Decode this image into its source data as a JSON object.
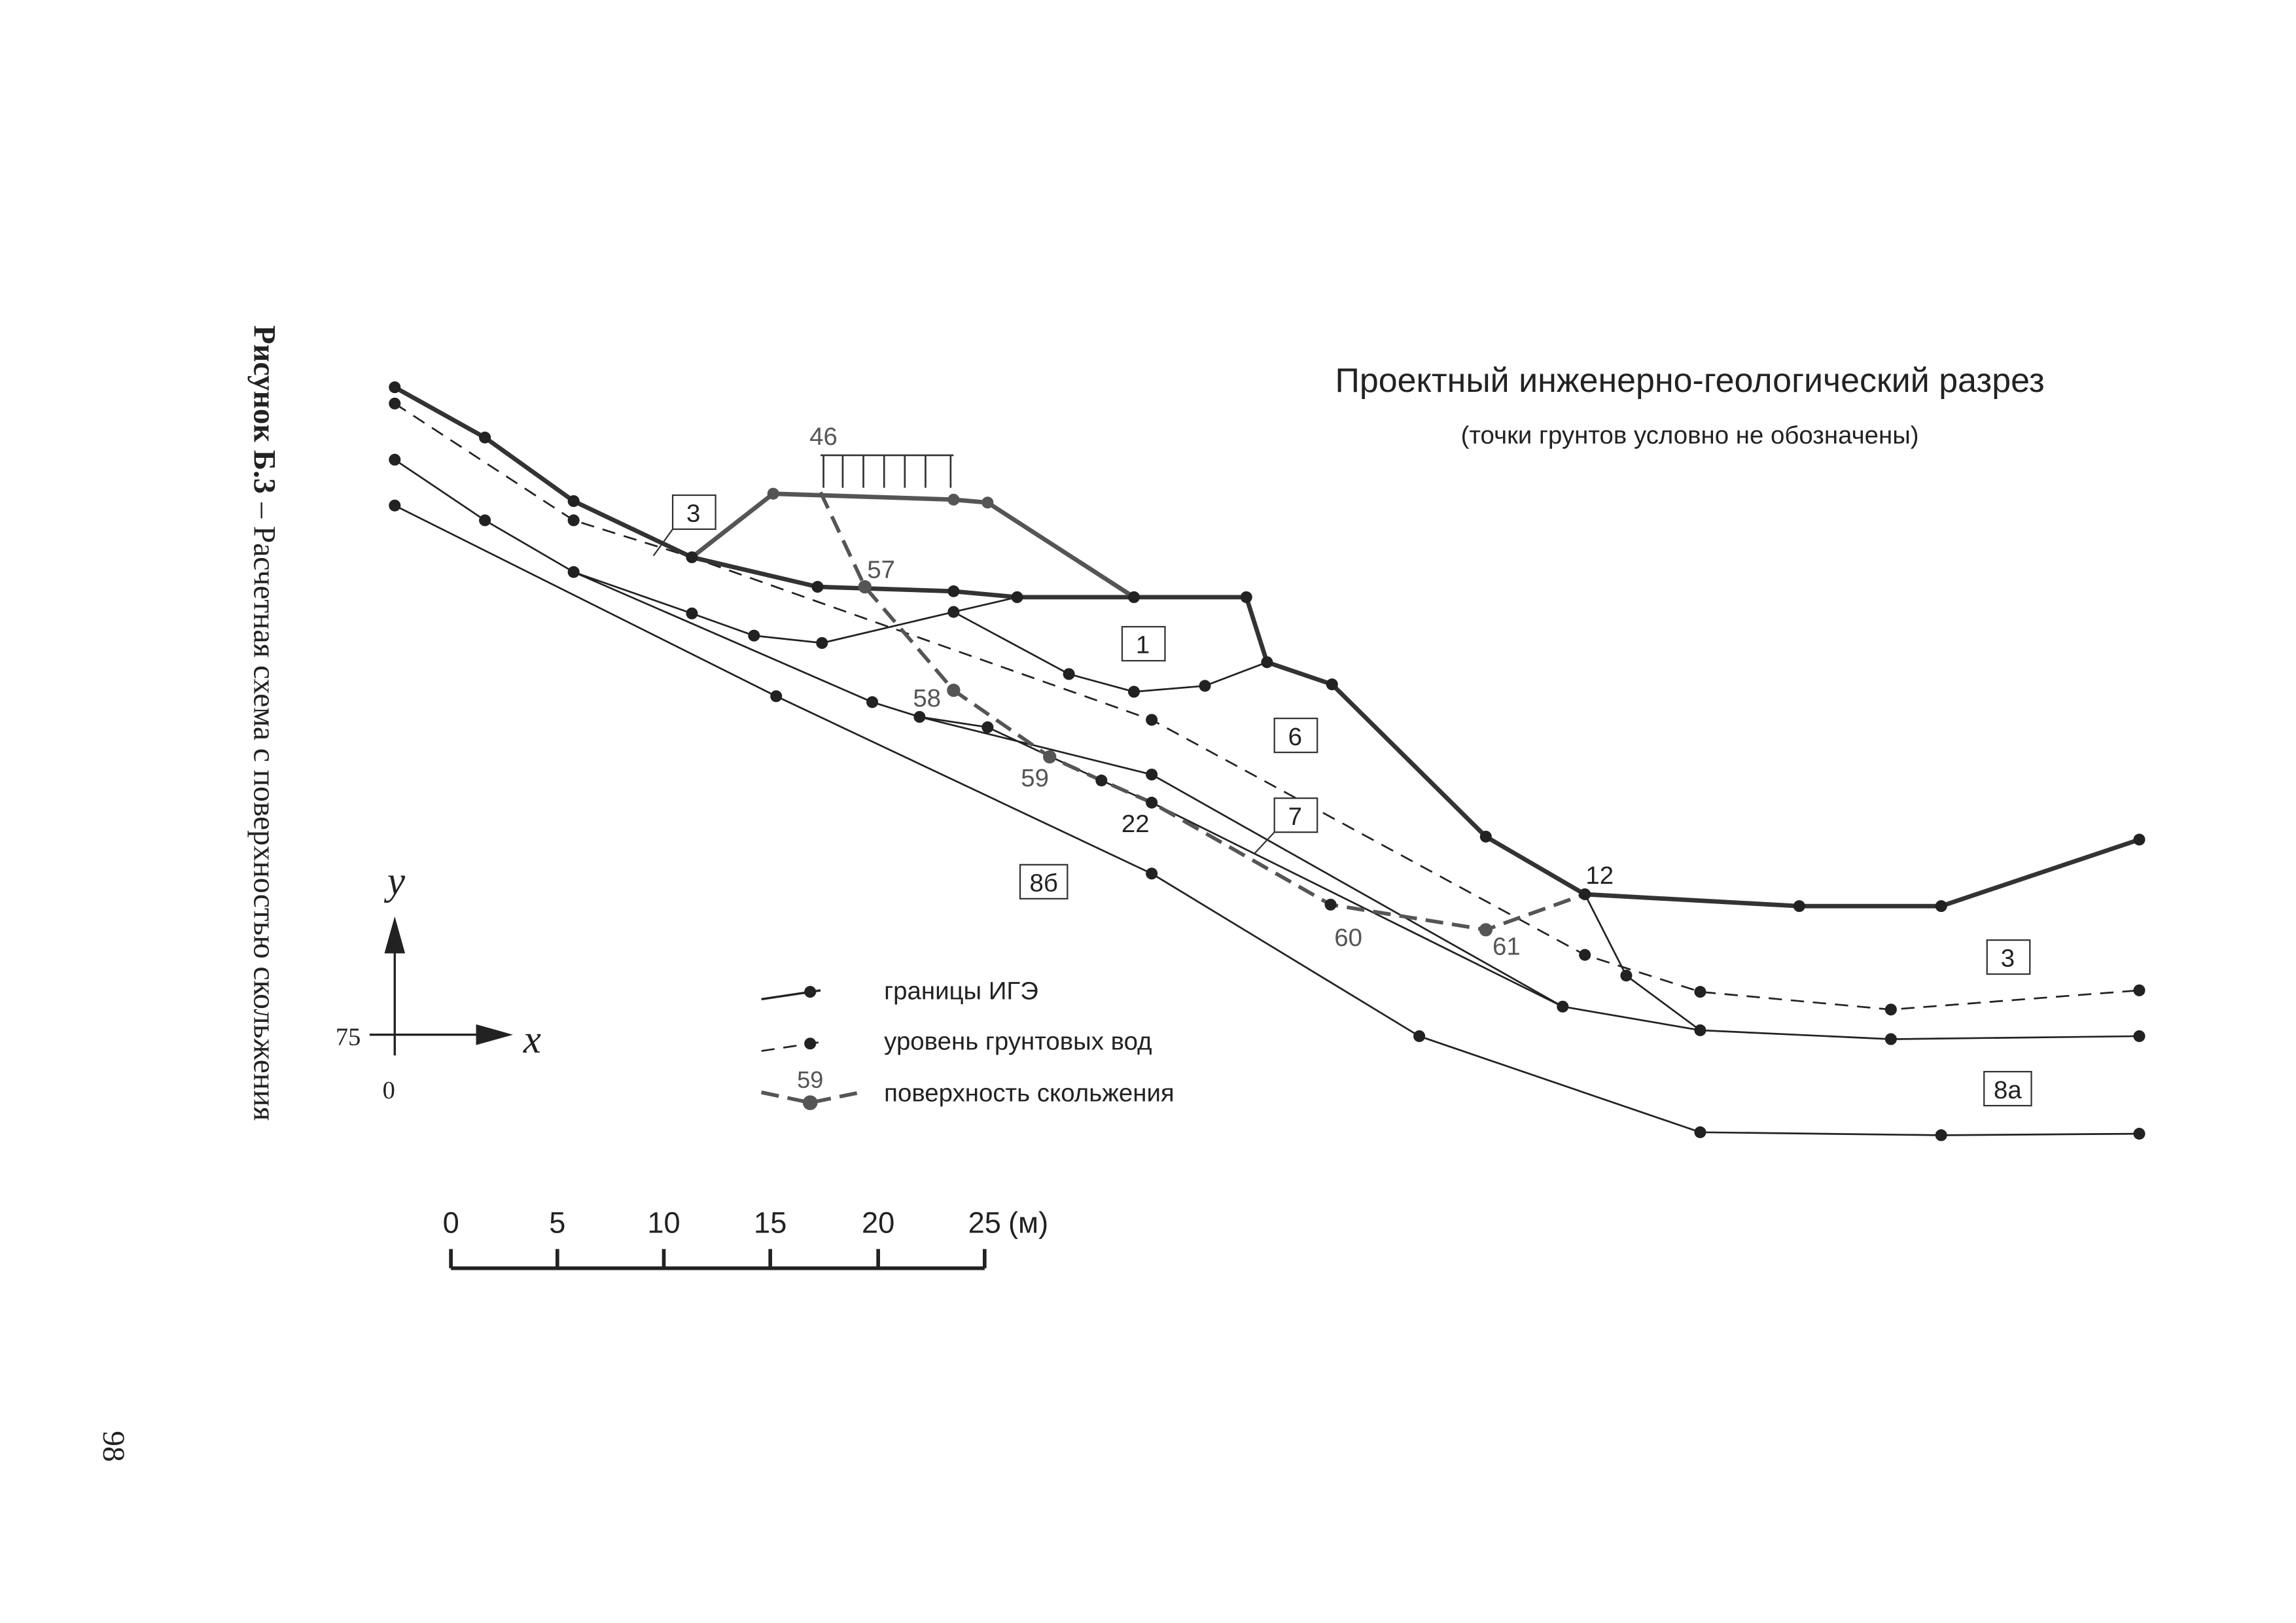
{
  "caption": {
    "label": "Рисунок Б.3",
    "text": "– Расчетная схема с поверхностью скольжения"
  },
  "page_number": "98",
  "header": {
    "title": "Проектный инженерно-геологический разрез",
    "subtitle": "(точки грунтов условно не обозначены)"
  },
  "layers": [
    "3",
    "1",
    "6",
    "7",
    "8б",
    "3",
    "8а"
  ],
  "points": [
    "46",
    "57",
    "58",
    "59",
    "22",
    "60",
    "61",
    "12"
  ],
  "legend": [
    "границы ИГЭ",
    "уровень грунтовых вод",
    "поверхность скольжения"
  ],
  "legend_marker": "59",
  "axes": {
    "y": "y",
    "x": "x",
    "origin_y": "75",
    "origin_x": "0"
  },
  "scale": {
    "ticks": [
      "0",
      "5",
      "10",
      "15",
      "20",
      "25"
    ],
    "unit": "(м)"
  }
}
